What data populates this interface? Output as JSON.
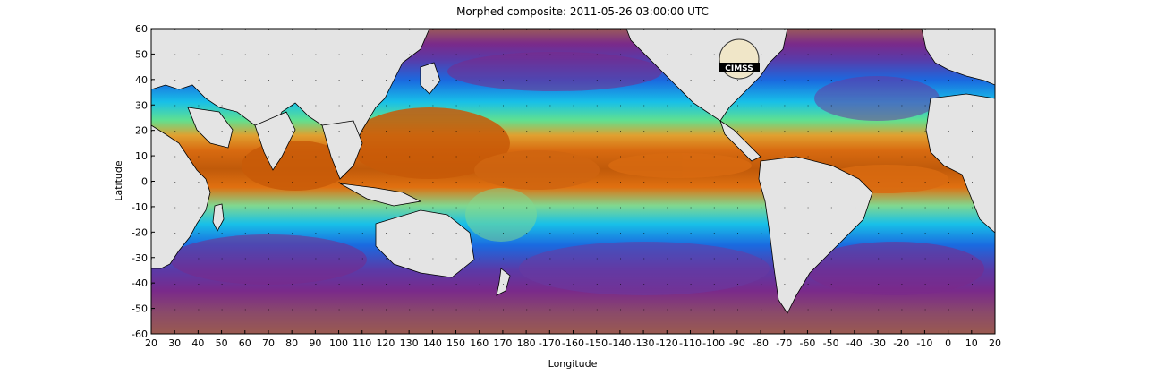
{
  "title": "Morphed composite: 2011-05-26 03:00:00 UTC",
  "x_axis": {
    "label": "Longitude",
    "ticks": [
      "20",
      "30",
      "40",
      "50",
      "60",
      "70",
      "80",
      "90",
      "100",
      "110",
      "120",
      "130",
      "140",
      "150",
      "160",
      "170",
      "180",
      "-170",
      "-160",
      "-150",
      "-140",
      "-130",
      "-120",
      "-110",
      "-100",
      "-90",
      "-80",
      "-70",
      "-60",
      "-50",
      "-40",
      "-30",
      "-20",
      "-10",
      "0",
      "10",
      "20"
    ]
  },
  "y_axis": {
    "label": "Latitude",
    "ticks": [
      "60",
      "50",
      "40",
      "30",
      "20",
      "10",
      "0",
      "-10",
      "-20",
      "-30",
      "-40",
      "-50",
      "-60"
    ]
  },
  "logo_text": "CIMSS",
  "colors": {
    "land": "#e4e4e4",
    "dry": "#9a5a5a",
    "purple": "#7a2a8a",
    "violet": "#5a3aa8",
    "blue": "#1a6ae0",
    "cyan": "#18c0e8",
    "green": "#60e090",
    "yellow": "#e8c030",
    "orange": "#e07010",
    "dark_orange": "#b85008"
  }
}
